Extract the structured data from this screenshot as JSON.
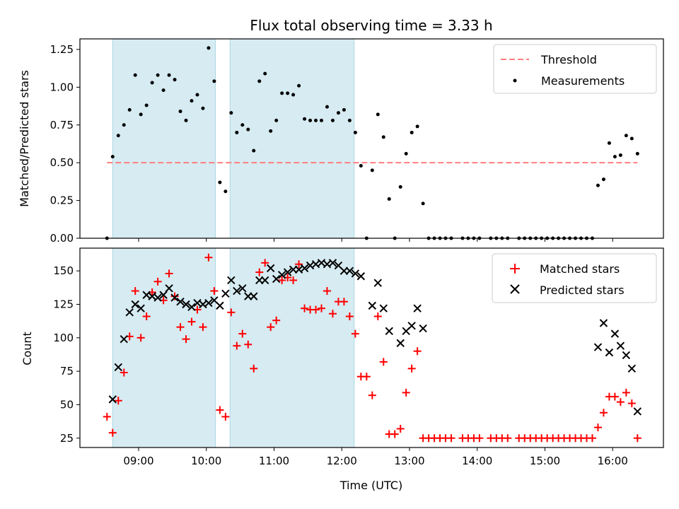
{
  "chart_data": [
    {
      "type": "scatter",
      "title": "Flux total observing time = 3.33 h",
      "xlabel": "",
      "ylabel": "Matched/Predicted stars",
      "ylim": [
        0,
        1.32
      ],
      "yticks": [
        "0.00",
        "0.25",
        "0.50",
        "0.75",
        "1.00",
        "1.25"
      ],
      "xlim": [
        "08:08",
        "16:45"
      ],
      "shaded_intervals": [
        [
          "08:37",
          "10:08"
        ],
        [
          "10:21",
          "12:11"
        ]
      ],
      "threshold": {
        "name": "Threshold",
        "y": 0.5,
        "x": [
          "08:32",
          "16:22"
        ],
        "color": "#ff7f7f"
      },
      "legend": {
        "placement": "top-right",
        "entries": [
          "Threshold",
          "Measurements"
        ]
      },
      "series": [
        {
          "name": "Measurements",
          "color": "#000000",
          "points": [
            [
              "08:32",
              0.0
            ],
            [
              "08:37",
              0.54
            ],
            [
              "08:42",
              0.68
            ],
            [
              "08:47",
              0.75
            ],
            [
              "08:52",
              0.85
            ],
            [
              "08:57",
              1.08
            ],
            [
              "09:02",
              0.82
            ],
            [
              "09:07",
              0.88
            ],
            [
              "09:12",
              1.03
            ],
            [
              "09:17",
              1.08
            ],
            [
              "09:22",
              0.98
            ],
            [
              "09:27",
              1.08
            ],
            [
              "09:32",
              1.05
            ],
            [
              "09:37",
              0.84
            ],
            [
              "09:42",
              0.78
            ],
            [
              "09:47",
              0.91
            ],
            [
              "09:52",
              0.95
            ],
            [
              "09:57",
              0.86
            ],
            [
              "10:02",
              1.26
            ],
            [
              "10:07",
              1.04
            ],
            [
              "10:12",
              0.37
            ],
            [
              "10:17",
              0.31
            ],
            [
              "10:22",
              0.83
            ],
            [
              "10:27",
              0.7
            ],
            [
              "10:32",
              0.75
            ],
            [
              "10:37",
              0.72
            ],
            [
              "10:42",
              0.58
            ],
            [
              "10:47",
              1.04
            ],
            [
              "10:52",
              1.09
            ],
            [
              "10:57",
              0.71
            ],
            [
              "11:02",
              0.78
            ],
            [
              "11:07",
              0.96
            ],
            [
              "11:12",
              0.96
            ],
            [
              "11:17",
              0.95
            ],
            [
              "11:22",
              1.01
            ],
            [
              "11:27",
              0.79
            ],
            [
              "11:32",
              0.78
            ],
            [
              "11:37",
              0.78
            ],
            [
              "11:42",
              0.78
            ],
            [
              "11:47",
              0.87
            ],
            [
              "11:52",
              0.78
            ],
            [
              "11:57",
              0.83
            ],
            [
              "12:02",
              0.85
            ],
            [
              "12:07",
              0.78
            ],
            [
              "12:12",
              0.7
            ],
            [
              "12:17",
              0.48
            ],
            [
              "12:22",
              0.0
            ],
            [
              "12:27",
              0.45
            ],
            [
              "12:32",
              0.82
            ],
            [
              "12:37",
              0.67
            ],
            [
              "12:42",
              0.26
            ],
            [
              "12:47",
              0.0
            ],
            [
              "12:52",
              0.34
            ],
            [
              "12:57",
              0.56
            ],
            [
              "13:02",
              0.7
            ],
            [
              "13:07",
              0.74
            ],
            [
              "13:12",
              0.23
            ],
            [
              "13:17",
              0.0
            ],
            [
              "13:22",
              0.0
            ],
            [
              "13:27",
              0.0
            ],
            [
              "13:32",
              0.0
            ],
            [
              "13:37",
              0.0
            ],
            [
              "13:47",
              0.0
            ],
            [
              "13:52",
              0.0
            ],
            [
              "13:57",
              0.0
            ],
            [
              "14:02",
              0.0
            ],
            [
              "14:12",
              0.0
            ],
            [
              "14:17",
              0.0
            ],
            [
              "14:22",
              0.0
            ],
            [
              "14:27",
              0.0
            ],
            [
              "14:37",
              0.0
            ],
            [
              "14:42",
              0.0
            ],
            [
              "14:47",
              0.0
            ],
            [
              "14:52",
              0.0
            ],
            [
              "14:57",
              0.0
            ],
            [
              "15:02",
              0.0
            ],
            [
              "15:07",
              0.0
            ],
            [
              "15:12",
              0.0
            ],
            [
              "15:17",
              0.0
            ],
            [
              "15:22",
              0.0
            ],
            [
              "15:27",
              0.0
            ],
            [
              "15:32",
              0.0
            ],
            [
              "15:37",
              0.0
            ],
            [
              "15:42",
              0.0
            ],
            [
              "15:47",
              0.35
            ],
            [
              "15:52",
              0.39
            ],
            [
              "15:57",
              0.63
            ],
            [
              "16:02",
              0.54
            ],
            [
              "16:07",
              0.55
            ],
            [
              "16:12",
              0.68
            ],
            [
              "16:17",
              0.66
            ],
            [
              "16:22",
              0.56
            ]
          ]
        }
      ]
    },
    {
      "type": "scatter",
      "title": "",
      "xlabel": "Time (UTC)",
      "ylabel": "Count",
      "ylim": [
        18,
        167
      ],
      "yticks": [
        "25",
        "50",
        "75",
        "100",
        "125",
        "150"
      ],
      "xticks": [
        "09:00",
        "10:00",
        "11:00",
        "12:00",
        "13:00",
        "14:00",
        "15:00",
        "16:00"
      ],
      "xlim": [
        "08:08",
        "16:45"
      ],
      "shaded_intervals": [
        [
          "08:37",
          "10:08"
        ],
        [
          "10:21",
          "12:11"
        ]
      ],
      "legend": {
        "placement": "top-right",
        "entries": [
          "Matched stars",
          "Predicted stars"
        ]
      },
      "series": [
        {
          "name": "Matched stars",
          "marker": "plus",
          "color": "#ff0000",
          "points": [
            [
              "08:32",
              41
            ],
            [
              "08:37",
              29
            ],
            [
              "08:42",
              53
            ],
            [
              "08:47",
              74
            ],
            [
              "08:52",
              101
            ],
            [
              "08:57",
              135
            ],
            [
              "09:02",
              100
            ],
            [
              "09:07",
              116
            ],
            [
              "09:12",
              134
            ],
            [
              "09:17",
              142
            ],
            [
              "09:22",
              128
            ],
            [
              "09:27",
              148
            ],
            [
              "09:32",
              131
            ],
            [
              "09:37",
              108
            ],
            [
              "09:42",
              99
            ],
            [
              "09:47",
              112
            ],
            [
              "09:52",
              121
            ],
            [
              "09:57",
              108
            ],
            [
              "10:02",
              160
            ],
            [
              "10:07",
              135
            ],
            [
              "10:12",
              46
            ],
            [
              "10:17",
              41
            ],
            [
              "10:22",
              119
            ],
            [
              "10:27",
              94
            ],
            [
              "10:32",
              103
            ],
            [
              "10:37",
              95
            ],
            [
              "10:42",
              77
            ],
            [
              "10:47",
              149
            ],
            [
              "10:52",
              156
            ],
            [
              "10:57",
              108
            ],
            [
              "11:02",
              113
            ],
            [
              "11:07",
              143
            ],
            [
              "11:12",
              145
            ],
            [
              "11:17",
              143
            ],
            [
              "11:22",
              155
            ],
            [
              "11:27",
              122
            ],
            [
              "11:32",
              121
            ],
            [
              "11:37",
              121
            ],
            [
              "11:42",
              122
            ],
            [
              "11:47",
              135
            ],
            [
              "11:52",
              118
            ],
            [
              "11:57",
              127
            ],
            [
              "12:02",
              127
            ],
            [
              "12:07",
              116
            ],
            [
              "12:12",
              103
            ],
            [
              "12:17",
              71
            ],
            [
              "12:22",
              71
            ],
            [
              "12:27",
              57
            ],
            [
              "12:32",
              116
            ],
            [
              "12:37",
              82
            ],
            [
              "12:42",
              28
            ],
            [
              "12:47",
              28
            ],
            [
              "12:52",
              32
            ],
            [
              "12:57",
              59
            ],
            [
              "13:02",
              77
            ],
            [
              "13:07",
              90
            ],
            [
              "13:12",
              25
            ],
            [
              "13:17",
              25
            ],
            [
              "13:22",
              25
            ],
            [
              "13:27",
              25
            ],
            [
              "13:32",
              25
            ],
            [
              "13:37",
              25
            ],
            [
              "13:47",
              25
            ],
            [
              "13:52",
              25
            ],
            [
              "13:57",
              25
            ],
            [
              "14:02",
              25
            ],
            [
              "14:12",
              25
            ],
            [
              "14:17",
              25
            ],
            [
              "14:22",
              25
            ],
            [
              "14:27",
              25
            ],
            [
              "14:37",
              25
            ],
            [
              "14:42",
              25
            ],
            [
              "14:47",
              25
            ],
            [
              "14:52",
              25
            ],
            [
              "14:57",
              25
            ],
            [
              "15:02",
              25
            ],
            [
              "15:07",
              25
            ],
            [
              "15:12",
              25
            ],
            [
              "15:17",
              25
            ],
            [
              "15:22",
              25
            ],
            [
              "15:27",
              25
            ],
            [
              "15:32",
              25
            ],
            [
              "15:37",
              25
            ],
            [
              "15:42",
              25
            ],
            [
              "15:47",
              33
            ],
            [
              "15:52",
              44
            ],
            [
              "15:57",
              56
            ],
            [
              "16:02",
              56
            ],
            [
              "16:07",
              52
            ],
            [
              "16:12",
              59
            ],
            [
              "16:17",
              51
            ],
            [
              "16:22",
              25
            ]
          ]
        },
        {
          "name": "Predicted stars",
          "marker": "x",
          "color": "#000000",
          "points": [
            [
              "08:37",
              54
            ],
            [
              "08:42",
              78
            ],
            [
              "08:47",
              99
            ],
            [
              "08:52",
              119
            ],
            [
              "08:57",
              125
            ],
            [
              "09:02",
              122
            ],
            [
              "09:07",
              132
            ],
            [
              "09:12",
              131
            ],
            [
              "09:17",
              130
            ],
            [
              "09:22",
              132
            ],
            [
              "09:27",
              137
            ],
            [
              "09:32",
              130
            ],
            [
              "09:37",
              127
            ],
            [
              "09:42",
              125
            ],
            [
              "09:47",
              123
            ],
            [
              "09:52",
              126
            ],
            [
              "09:57",
              125
            ],
            [
              "10:02",
              126
            ],
            [
              "10:07",
              128
            ],
            [
              "10:12",
              124
            ],
            [
              "10:17",
              133
            ],
            [
              "10:22",
              143
            ],
            [
              "10:27",
              135
            ],
            [
              "10:32",
              137
            ],
            [
              "10:37",
              131
            ],
            [
              "10:42",
              131
            ],
            [
              "10:47",
              143
            ],
            [
              "10:52",
              143
            ],
            [
              "10:57",
              152
            ],
            [
              "11:02",
              144
            ],
            [
              "11:07",
              147
            ],
            [
              "11:12",
              149
            ],
            [
              "11:17",
              151
            ],
            [
              "11:22",
              151
            ],
            [
              "11:27",
              152
            ],
            [
              "11:32",
              154
            ],
            [
              "11:37",
              155
            ],
            [
              "11:42",
              156
            ],
            [
              "11:47",
              155
            ],
            [
              "11:52",
              156
            ],
            [
              "11:57",
              154
            ],
            [
              "12:02",
              150
            ],
            [
              "12:07",
              150
            ],
            [
              "12:12",
              148
            ],
            [
              "12:17",
              146
            ],
            [
              "12:27",
              124
            ],
            [
              "12:32",
              141
            ],
            [
              "12:37",
              122
            ],
            [
              "12:42",
              105
            ],
            [
              "12:52",
              96
            ],
            [
              "12:57",
              105
            ],
            [
              "13:02",
              109
            ],
            [
              "13:07",
              122
            ],
            [
              "13:12",
              107
            ],
            [
              "15:47",
              93
            ],
            [
              "15:52",
              111
            ],
            [
              "15:57",
              89
            ],
            [
              "16:02",
              103
            ],
            [
              "16:07",
              94
            ],
            [
              "16:12",
              87
            ],
            [
              "16:17",
              77
            ],
            [
              "16:22",
              45
            ]
          ]
        }
      ]
    }
  ]
}
